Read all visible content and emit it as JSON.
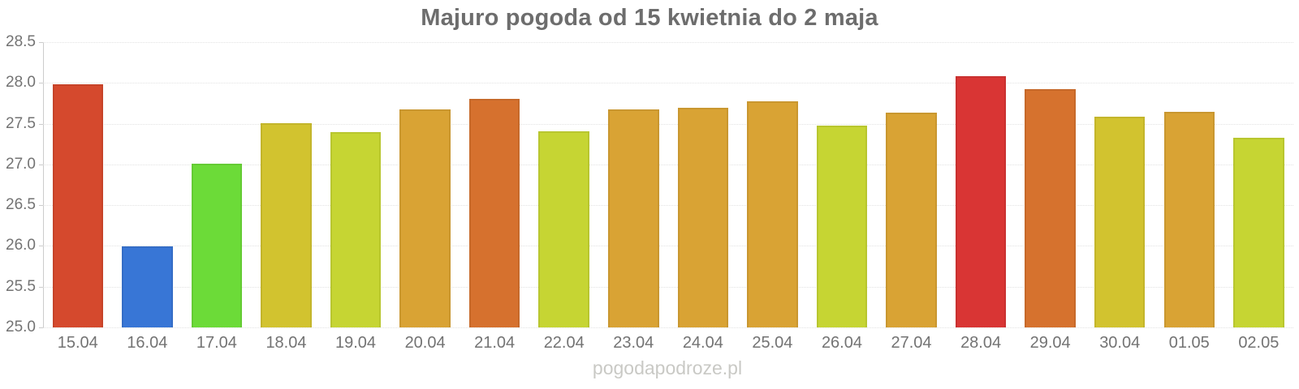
{
  "chart_data": {
    "type": "bar",
    "title": "Majuro pogoda od 15 kwietnia do 2 maja",
    "categories": [
      "15.04",
      "16.04",
      "17.04",
      "18.04",
      "19.04",
      "20.04",
      "21.04",
      "22.04",
      "23.04",
      "24.04",
      "25.04",
      "26.04",
      "27.04",
      "28.04",
      "29.04",
      "30.04",
      "01.05",
      "02.05"
    ],
    "values": [
      27.98,
      25.99,
      27.01,
      27.51,
      27.4,
      27.67,
      27.8,
      27.41,
      27.67,
      27.69,
      27.77,
      27.48,
      27.64,
      28.08,
      27.92,
      27.59,
      27.65,
      27.33
    ],
    "bar_colors": [
      "#d5492d",
      "#3876d6",
      "#6cdb38",
      "#d2c32f",
      "#c6d533",
      "#d9a334",
      "#d6712e",
      "#c6d533",
      "#d9a334",
      "#d9a334",
      "#d9a334",
      "#c6d533",
      "#d9a334",
      "#d93534",
      "#d6722e",
      "#d2c32f",
      "#d9a334",
      "#c6d533"
    ],
    "xlabel": "",
    "ylabel": "",
    "ylim": [
      25.0,
      28.5
    ],
    "ytick_step": 0.5,
    "ytick_labels": [
      "28.5",
      "28.0",
      "27.5",
      "27.0",
      "26.5",
      "26.0",
      "25.5",
      "25.0"
    ],
    "grid": "horizontal-dotted",
    "legend": "none"
  },
  "watermark": "pogodapodroze.pl",
  "colors": {
    "background": "#ffffff",
    "title_text": "#6d6d6d",
    "axis_text": "#737373",
    "axis_line": "#cccccc",
    "gridline": "#e2e2e2",
    "watermark_text": "#c9c9c5"
  }
}
